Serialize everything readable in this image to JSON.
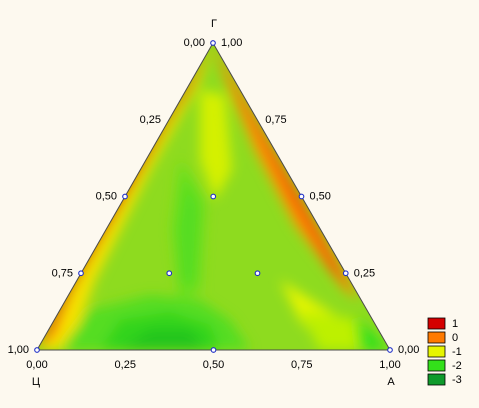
{
  "chart_data": {
    "type": "heatmap",
    "subtype": "ternary-contour",
    "vertices": {
      "top": "Г",
      "bottom_left": "Ц",
      "bottom_right": "A"
    },
    "ticks": [
      "0,00",
      "0,25",
      "0,50",
      "0,75",
      "1,00"
    ],
    "legend": {
      "placement": "bottom-right",
      "levels": [
        {
          "label": "1",
          "color": "#d40000"
        },
        {
          "label": "0",
          "color": "#ff7a00"
        },
        {
          "label": "-1",
          "color": "#e6f500"
        },
        {
          "label": "-2",
          "color": "#33e01a"
        },
        {
          "label": "-3",
          "color": "#0f9a2b"
        }
      ]
    },
    "points": [
      {
        "G": 1.0,
        "Ts": 0.0,
        "A": 0.0
      },
      {
        "G": 0.5,
        "Ts": 0.5,
        "A": 0.0
      },
      {
        "G": 0.5,
        "Ts": 0.0,
        "A": 0.5
      },
      {
        "G": 0.5,
        "Ts": 0.25,
        "A": 0.25
      },
      {
        "G": 0.0,
        "Ts": 0.5,
        "A": 0.5
      },
      {
        "G": 0.25,
        "Ts": 0.5,
        "A": 0.25
      },
      {
        "G": 0.25,
        "Ts": 0.25,
        "A": 0.5
      },
      {
        "G": 0.25,
        "Ts": 0.75,
        "A": 0.0
      },
      {
        "G": 0.25,
        "Ts": 0.0,
        "A": 0.75
      },
      {
        "G": 0.0,
        "Ts": 1.0,
        "A": 0.0
      },
      {
        "G": 0.0,
        "Ts": 0.0,
        "A": 1.0
      }
    ],
    "grid": false
  }
}
